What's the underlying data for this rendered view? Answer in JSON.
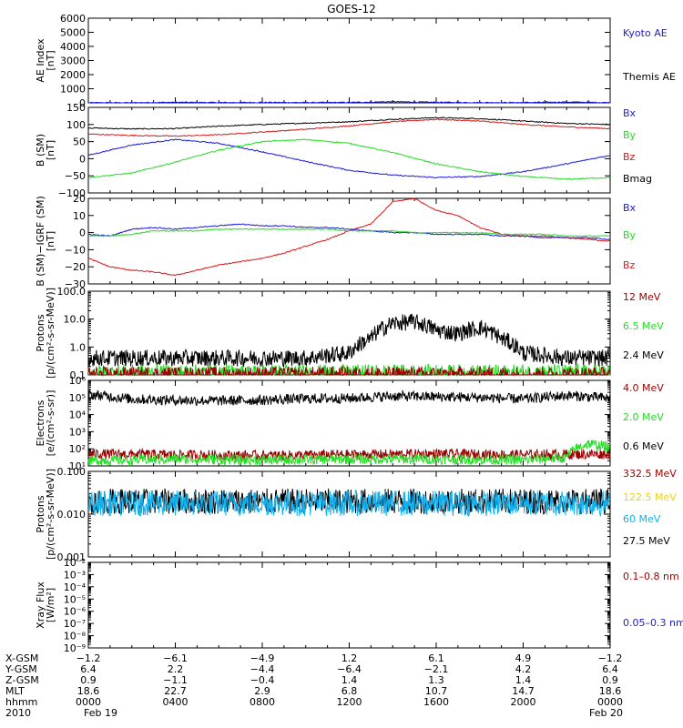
{
  "title": "GOES-12",
  "colors": {
    "black": "#000000",
    "blue": "#1a1ad8",
    "red": "#d11a1a",
    "green": "#22dd22",
    "darkred": "#9b0000",
    "yellow": "#e8d21e",
    "cyan": "#13b0ee",
    "axis": "#000000"
  },
  "chart_data": [
    {
      "type": "line",
      "panel": "ae",
      "ylabel": "AE Index [nT]",
      "ylim": [
        0,
        6000
      ],
      "scale": "linear",
      "yticks": [
        0,
        1000,
        2000,
        3000,
        4000,
        5000,
        6000
      ],
      "yticklabels": [
        "0",
        "1000",
        "2000",
        "3000",
        "4000",
        "5000",
        "6000"
      ],
      "legend": [
        {
          "label": "Kyoto AE",
          "color": "blue"
        },
        {
          "label": "Themis AE",
          "color": "black"
        }
      ],
      "series": [
        {
          "name": "Kyoto AE",
          "color": "blue",
          "style": "line",
          "x": [
            0,
            2,
            4,
            6,
            8,
            10,
            12,
            14,
            16,
            18,
            20,
            22,
            24
          ],
          "y": [
            10,
            10,
            40,
            20,
            30,
            20,
            30,
            80,
            40,
            20,
            20,
            60,
            20
          ]
        }
      ]
    },
    {
      "type": "line",
      "panel": "b",
      "ylabel": "B (SM) [nT]",
      "ylim": [
        -100,
        150
      ],
      "scale": "linear",
      "yticks": [
        -100,
        -50,
        0,
        50,
        100,
        150
      ],
      "yticklabels": [
        "−100",
        "−50",
        "0",
        "50",
        "100",
        "150"
      ],
      "legend": [
        {
          "label": "Bx",
          "color": "blue"
        },
        {
          "label": "By",
          "color": "green"
        },
        {
          "label": "Bz",
          "color": "red"
        },
        {
          "label": "Bmag",
          "color": "black"
        }
      ],
      "series": [
        {
          "name": "Bmag",
          "color": "black",
          "style": "line",
          "x": [
            0,
            2,
            4,
            6,
            8,
            10,
            12,
            14,
            16,
            18,
            20,
            22,
            24
          ],
          "y": [
            90,
            87,
            88,
            95,
            100,
            104,
            108,
            115,
            120,
            117,
            110,
            103,
            100
          ]
        },
        {
          "name": "Bz",
          "color": "red",
          "style": "line",
          "x": [
            0,
            2,
            4,
            6,
            8,
            10,
            12,
            14,
            16,
            18,
            20,
            22,
            24
          ],
          "y": [
            72,
            68,
            66,
            70,
            78,
            86,
            96,
            108,
            115,
            110,
            100,
            93,
            88
          ]
        },
        {
          "name": "Bx",
          "color": "blue",
          "style": "line",
          "x": [
            0,
            2,
            4,
            6,
            8,
            10,
            12,
            14,
            16,
            18,
            20,
            22,
            24
          ],
          "y": [
            10,
            40,
            56,
            45,
            20,
            -8,
            -34,
            -48,
            -55,
            -52,
            -38,
            -15,
            10
          ]
        },
        {
          "name": "By",
          "color": "green",
          "style": "line",
          "x": [
            0,
            2,
            4,
            6,
            8,
            10,
            12,
            14,
            16,
            18,
            20,
            22,
            24
          ],
          "y": [
            -55,
            -42,
            -10,
            25,
            50,
            56,
            45,
            18,
            -15,
            -38,
            -52,
            -60,
            -55
          ]
        }
      ]
    },
    {
      "type": "line",
      "panel": "dbgrf",
      "ylabel": "B (SM)−IGRF (SM) [nT]",
      "ylim": [
        -30,
        20
      ],
      "scale": "linear",
      "yticks": [
        -30,
        -20,
        -10,
        0,
        10,
        20
      ],
      "yticklabels": [
        "−30",
        "−20",
        "−10",
        "0",
        "10",
        "20"
      ],
      "legend": [
        {
          "label": "Bx",
          "color": "blue"
        },
        {
          "label": "By",
          "color": "green"
        },
        {
          "label": "Bz",
          "color": "red"
        }
      ],
      "series": [
        {
          "name": "Bz",
          "color": "red",
          "style": "line",
          "x": [
            0,
            1,
            2,
            3,
            4,
            5,
            6,
            7,
            8,
            9,
            10,
            11,
            12,
            13,
            14,
            15,
            16,
            17,
            18,
            19,
            20,
            21,
            22,
            23,
            24
          ],
          "y": [
            -15,
            -20,
            -22,
            -23,
            -25,
            -22,
            -19,
            -17,
            -15,
            -12,
            -8,
            -4,
            1,
            5,
            18,
            20,
            13,
            10,
            3,
            -1,
            -2,
            -2,
            -3,
            -4,
            -5
          ]
        },
        {
          "name": "Bx",
          "color": "blue",
          "style": "line",
          "x": [
            0,
            1,
            2,
            3,
            4,
            5,
            6,
            7,
            8,
            9,
            10,
            11,
            12,
            13,
            14,
            15,
            16,
            17,
            18,
            19,
            20,
            21,
            22,
            23,
            24
          ],
          "y": [
            -1,
            -2,
            2,
            3,
            2,
            3,
            4,
            5,
            4,
            4,
            3,
            3,
            2,
            1,
            0,
            0,
            -1,
            -1,
            -1,
            -2,
            -2,
            -3,
            -3,
            -3,
            -4
          ]
        },
        {
          "name": "By",
          "color": "green",
          "style": "line",
          "x": [
            0,
            1,
            2,
            3,
            4,
            5,
            6,
            7,
            8,
            9,
            10,
            11,
            12,
            13,
            14,
            15,
            16,
            17,
            18,
            19,
            20,
            21,
            22,
            23,
            24
          ],
          "y": [
            -2,
            -2,
            -1,
            1,
            1,
            1,
            2,
            2,
            2,
            2,
            2,
            2,
            1,
            1,
            1,
            0,
            0,
            0,
            0,
            -1,
            -1,
            -1,
            -2,
            -2,
            -2
          ]
        }
      ]
    },
    {
      "type": "line",
      "panel": "protons",
      "ylabel": "Protons [p/(cm²-s-sr-MeV)]",
      "ylim": [
        0.1,
        100
      ],
      "scale": "log",
      "yticks": [
        0.1,
        1,
        10,
        100
      ],
      "yticklabels": [
        "0.1",
        "1.0",
        "10.0",
        "100.0"
      ],
      "legend": [
        {
          "label": "12 MeV",
          "color": "darkred"
        },
        {
          "label": "6.5 MeV",
          "color": "green"
        },
        {
          "label": "2.4 MeV",
          "color": "black"
        }
      ],
      "series": [
        {
          "name": "2.4 MeV",
          "color": "black",
          "style": "noisy",
          "x": [
            0,
            2,
            4,
            6,
            8,
            10,
            12,
            13,
            14,
            15,
            16,
            17,
            18,
            19,
            20,
            22,
            24
          ],
          "y": [
            0.4,
            0.4,
            0.4,
            0.4,
            0.4,
            0.4,
            0.6,
            2,
            7,
            8,
            4,
            3,
            5,
            2,
            0.6,
            0.4,
            0.4
          ]
        },
        {
          "name": "6.5 MeV",
          "color": "green",
          "style": "noisy",
          "x": [
            0,
            12,
            24
          ],
          "y": [
            0.12,
            0.12,
            0.12
          ]
        },
        {
          "name": "12 MeV",
          "color": "darkred",
          "style": "noisy",
          "x": [
            0,
            24
          ],
          "y": [
            0.1,
            0.1
          ]
        }
      ]
    },
    {
      "type": "line",
      "panel": "electrons",
      "ylabel": "Electrons [e/(cm²-s-sr)]",
      "ylim": [
        10,
        1000000
      ],
      "scale": "log",
      "yticks": [
        10,
        100,
        1000,
        10000,
        100000,
        1000000
      ],
      "yticklabels": [
        "10¹",
        "10²",
        "10³",
        "10⁴",
        "10⁵",
        "10⁶"
      ],
      "legend": [
        {
          "label": "4.0 MeV",
          "color": "darkred"
        },
        {
          "label": "2.0 MeV",
          "color": "green"
        },
        {
          "label": "0.6 MeV",
          "color": "black"
        }
      ],
      "series": [
        {
          "name": "0.6 MeV",
          "color": "black",
          "style": "noisy",
          "x": [
            0,
            2,
            4,
            6,
            8,
            10,
            12,
            14,
            16,
            18,
            20,
            22,
            24
          ],
          "y": [
            150000,
            80000,
            70000,
            65000,
            70000,
            85000,
            90000,
            120000,
            110000,
            100000,
            80000,
            130000,
            90000
          ]
        },
        {
          "name": "4.0 MeV",
          "color": "darkred",
          "style": "noisy",
          "x": [
            0,
            4,
            8,
            12,
            16,
            20,
            24
          ],
          "y": [
            50,
            45,
            40,
            45,
            50,
            45,
            50
          ]
        },
        {
          "name": "2.0 MeV",
          "color": "green",
          "style": "noisy",
          "x": [
            0,
            4,
            8,
            12,
            16,
            20,
            22,
            23,
            24
          ],
          "y": [
            20,
            25,
            22,
            25,
            25,
            22,
            30,
            200,
            120
          ]
        }
      ]
    },
    {
      "type": "line",
      "panel": "hiprotons",
      "ylabel": "Protons [p/(cm²-s-sr-MeV)]",
      "ylim": [
        0.001,
        0.1
      ],
      "scale": "log",
      "yticks": [
        0.001,
        0.01,
        0.1
      ],
      "yticklabels": [
        "0.001",
        "0.010",
        "0.100"
      ],
      "legend": [
        {
          "label": "332.5 MeV",
          "color": "darkred"
        },
        {
          "label": "122.5 MeV",
          "color": "yellow"
        },
        {
          "label": "60 MeV",
          "color": "cyan"
        },
        {
          "label": "27.5 MeV",
          "color": "black"
        }
      ],
      "series": [
        {
          "name": "27.5 MeV",
          "color": "black",
          "style": "noisy",
          "x": [
            0,
            24
          ],
          "y": [
            0.02,
            0.02
          ]
        },
        {
          "name": "60 MeV",
          "color": "cyan",
          "style": "noisy",
          "x": [
            0,
            24
          ],
          "y": [
            0.018,
            0.018
          ]
        }
      ]
    },
    {
      "type": "line",
      "panel": "xray",
      "ylabel": "Xray Flux [W/m²]",
      "ylim": [
        1e-09,
        0.01
      ],
      "scale": "log",
      "yticks": [
        1e-09,
        1e-08,
        1e-07,
        1e-06,
        1e-05,
        0.0001,
        0.001,
        0.01
      ],
      "yticklabels": [
        "10⁻⁹",
        "10⁻⁸",
        "10⁻⁷",
        "10⁻⁶",
        "10⁻⁵",
        "10⁻⁴",
        "10⁻³",
        "10⁻²"
      ],
      "legend": [
        {
          "label": "0.1–0.8 nm",
          "color": "darkred"
        },
        {
          "label": "0.05–0.3 nm",
          "color": "blue"
        }
      ],
      "series": []
    }
  ],
  "ephemeris": {
    "row_labels": [
      "X-GSM",
      "Y-GSM",
      "Z-GSM",
      "MLT",
      "hhmm",
      "2010"
    ],
    "columns": [
      [
        "−1.2",
        "6.4",
        "0.9",
        "18.6",
        "0000",
        "Feb 19"
      ],
      [
        "−6.1",
        "2.2",
        "−1.1",
        "22.7",
        "0400",
        ""
      ],
      [
        "−4.9",
        "−4.4",
        "−0.4",
        "2.9",
        "0800",
        ""
      ],
      [
        "1.2",
        "−6.4",
        "1.4",
        "6.8",
        "1200",
        ""
      ],
      [
        "6.1",
        "−2.1",
        "1.3",
        "10.7",
        "1600",
        ""
      ],
      [
        "4.9",
        "4.2",
        "1.4",
        "14.7",
        "2000",
        ""
      ],
      [
        "−1.2",
        "6.4",
        "0.9",
        "18.6",
        "0000",
        "Feb 20"
      ]
    ]
  }
}
